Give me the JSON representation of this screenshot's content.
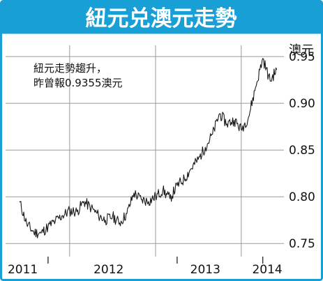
{
  "colors": {
    "frame": "#18a0d6",
    "header_bg": "#18a0d6",
    "title_text": "#ffffff",
    "line": "#1a1a1a",
    "grid": "#9a9a9a"
  },
  "chart_data": {
    "type": "line",
    "title": "紐元兑澳元走勢",
    "unit": "澳元",
    "annotation": [
      "紐元走勢趨升，",
      "昨曾報0.9355澳元"
    ],
    "x_tick_labels": [
      "2011",
      "2012",
      "2013",
      "2014"
    ],
    "y_ticks": [
      0.75,
      0.8,
      0.85,
      0.9,
      0.95
    ],
    "y_tick_labels": [
      "0.75",
      "0.80",
      "0.85",
      "0.90",
      "0.95"
    ],
    "ylim": [
      0.736,
      0.962
    ],
    "grid": "horizontal",
    "series": [
      {
        "x": [
          "2011-03-01",
          "2011-04-01",
          "2011-05-01",
          "2011-06-01",
          "2011-07-01",
          "2011-08-01",
          "2011-09-01",
          "2011-10-01",
          "2011-11-01",
          "2011-12-01",
          "2012-01-01",
          "2012-02-01",
          "2012-03-01",
          "2012-04-01",
          "2012-05-01",
          "2012-06-01",
          "2012-07-01",
          "2012-08-01",
          "2012-09-01",
          "2012-10-01",
          "2012-11-01",
          "2012-12-01",
          "2013-01-01",
          "2013-02-01",
          "2013-03-01",
          "2013-04-01",
          "2013-05-01",
          "2013-06-01",
          "2013-07-01",
          "2013-08-01",
          "2013-09-01",
          "2013-10-01",
          "2013-11-01",
          "2013-12-01",
          "2014-01-01",
          "2014-02-01",
          "2014-03-01"
        ],
        "values": [
          0.795,
          0.771,
          0.762,
          0.761,
          0.768,
          0.774,
          0.78,
          0.785,
          0.784,
          0.795,
          0.788,
          0.78,
          0.775,
          0.779,
          0.772,
          0.782,
          0.804,
          0.797,
          0.795,
          0.8,
          0.807,
          0.798,
          0.812,
          0.819,
          0.83,
          0.84,
          0.853,
          0.867,
          0.889,
          0.878,
          0.882,
          0.872,
          0.885,
          0.917,
          0.948,
          0.924,
          0.936
        ]
      }
    ]
  }
}
